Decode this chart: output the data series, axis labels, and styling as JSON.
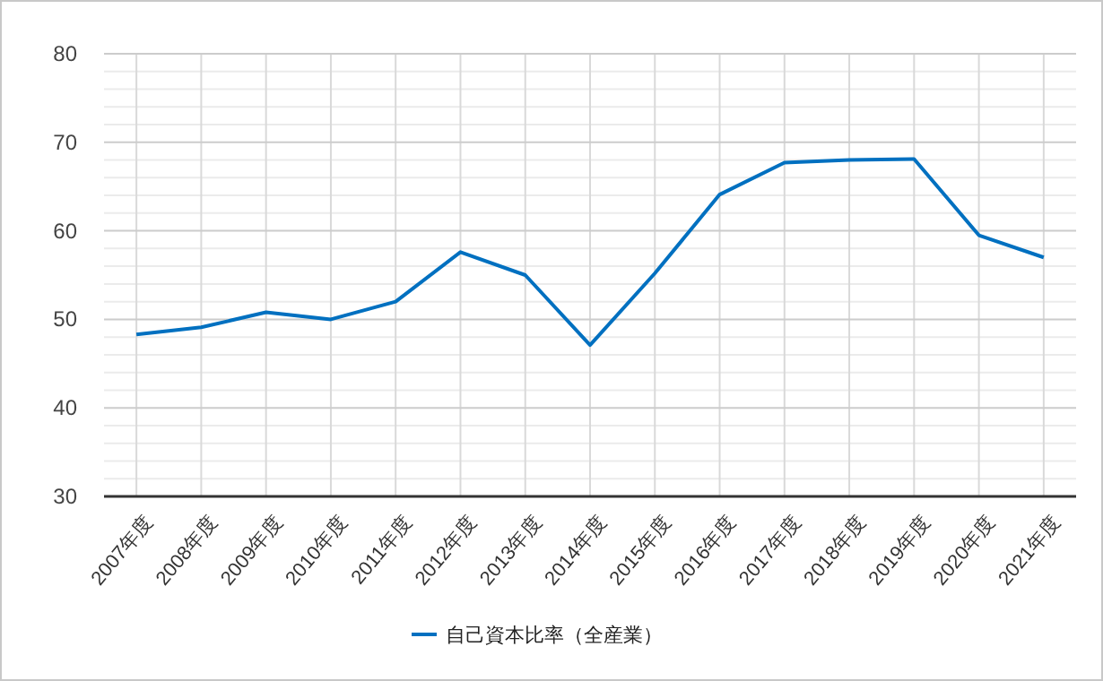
{
  "chart_data": {
    "type": "line",
    "categories": [
      "2007年度",
      "2008年度",
      "2009年度",
      "2010年度",
      "2011年度",
      "2012年度",
      "2013年度",
      "2014年度",
      "2015年度",
      "2016年度",
      "2017年度",
      "2018年度",
      "2019年度",
      "2020年度",
      "2021年度"
    ],
    "series": [
      {
        "name": "自己資本比率（全産業）",
        "color": "#0070c0",
        "values": [
          48.3,
          49.1,
          50.8,
          50.0,
          52.0,
          57.6,
          55.0,
          47.1,
          55.2,
          64.1,
          67.7,
          68.0,
          68.1,
          59.5,
          57.0
        ]
      }
    ],
    "ylim": [
      30,
      80
    ],
    "yticks": [
      30,
      40,
      50,
      60,
      70,
      80
    ],
    "grid": true,
    "legend": "bottom",
    "marker": "none",
    "line_style": "solid"
  }
}
